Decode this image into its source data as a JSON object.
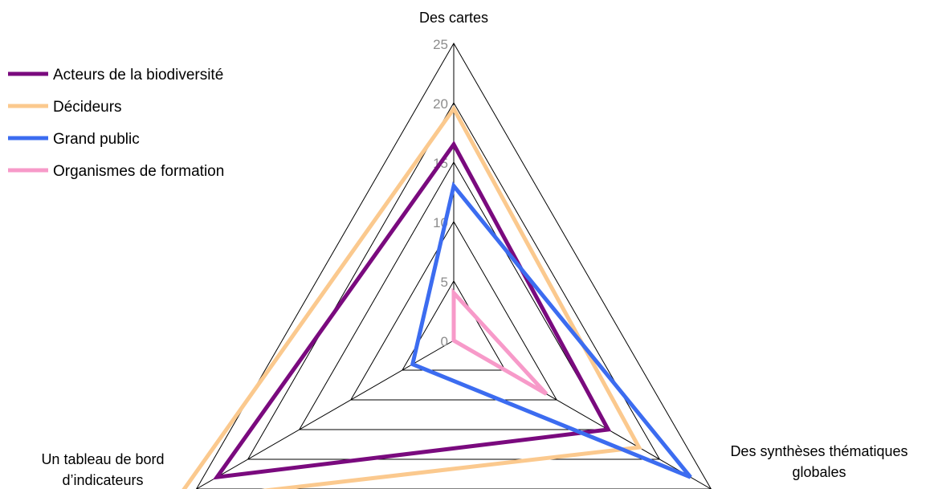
{
  "chart_data": {
    "type": "radar",
    "categories": [
      "Des cartes",
      "Des synthèses thématiques globales",
      "Un tableau de bord d’indicateurs"
    ],
    "category_label_lines": [
      [
        "Des cartes"
      ],
      [
        "Des synthèses thématiques",
        "globales"
      ],
      [
        "Un tableau de bord",
        "d’indicateurs"
      ]
    ],
    "ticks": [
      0,
      5,
      10,
      15,
      20,
      25
    ],
    "rlim": [
      0,
      25
    ],
    "legend_position": "top-left",
    "series": [
      {
        "name": "Acteurs de la biodiversité",
        "color": "#7a0a7e",
        "values": [
          16.5,
          15,
          23
        ]
      },
      {
        "name": "Décideurs",
        "color": "#fbc98e",
        "values": [
          19.5,
          18,
          27
        ]
      },
      {
        "name": "Grand public",
        "color": "#3c6cf0",
        "values": [
          13,
          23,
          4
        ]
      },
      {
        "name": "Organismes de formation",
        "color": "#f79ac9",
        "values": [
          4,
          9,
          0
        ]
      }
    ]
  }
}
